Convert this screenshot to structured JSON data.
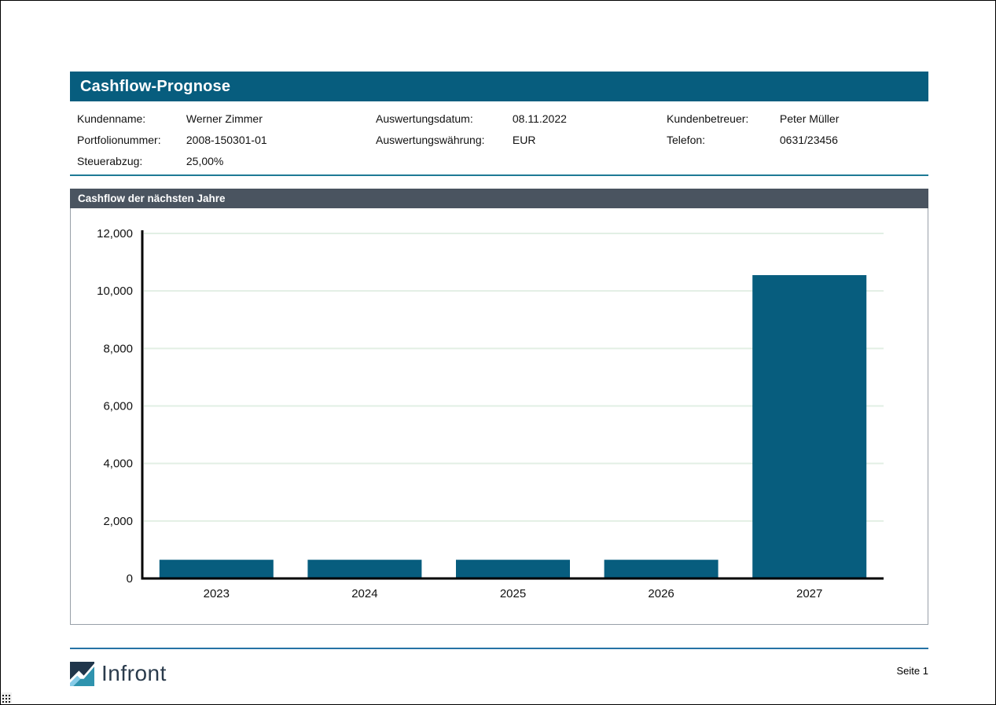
{
  "page": {
    "title": "Cashflow-Prognose"
  },
  "info": {
    "columns": [
      {
        "rows": [
          {
            "label": "Kundenname:",
            "value": "Werner Zimmer"
          },
          {
            "label": "Portfolionummer:",
            "value": "2008-150301-01"
          },
          {
            "label": "Steuerabzug:",
            "value": "25,00%"
          }
        ]
      },
      {
        "rows": [
          {
            "label": "Auswertungsdatum:",
            "value": "08.11.2022"
          },
          {
            "label": "Auswertungswährung:",
            "value": "EUR"
          }
        ]
      },
      {
        "rows": [
          {
            "label": "Kundenbetreuer:",
            "value": "Peter Müller"
          },
          {
            "label": "Telefon:",
            "value": "0631/23456"
          }
        ]
      }
    ]
  },
  "section": {
    "title": "Cashflow der nächsten Jahre"
  },
  "chart_data": {
    "type": "bar",
    "title": "Cashflow der nächsten Jahre",
    "categories": [
      "2023",
      "2024",
      "2025",
      "2026",
      "2027"
    ],
    "values": [
      650,
      650,
      650,
      650,
      10550
    ],
    "xlabel": "",
    "ylabel": "",
    "ylim": [
      0,
      12000
    ],
    "ytick_interval": 2000,
    "ytick_labels": [
      "0",
      "2,000",
      "4,000",
      "6,000",
      "8,000",
      "10,000",
      "12,000"
    ],
    "grid": true,
    "legend": "none",
    "bar_color": "#075d7e",
    "grid_color": "#e2efe4",
    "axis_color": "#000000"
  },
  "footer": {
    "brand": "Infront",
    "page_label": "Seite 1"
  },
  "colors": {
    "accent_teal": "#075d7e",
    "section_header_gray": "#4a5460",
    "divider_teal": "#1e7a95",
    "footer_line_blue": "#2673a5",
    "logo_navy": "#20364b",
    "logo_lightblue": "#86cbe8",
    "logo_teal": "#2f93ae"
  }
}
